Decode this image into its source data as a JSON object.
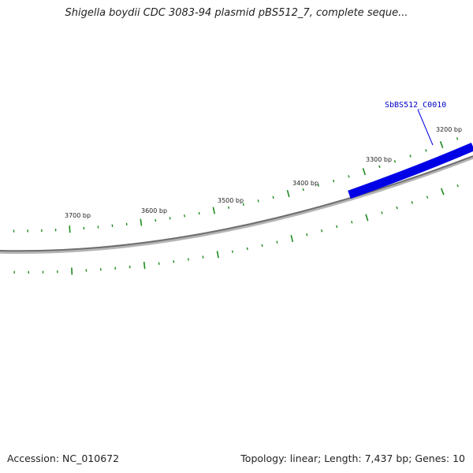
{
  "title": "Shigella boydii CDC 3083-94 plasmid pBS512_7, complete seque...",
  "footer": {
    "accession": "Accession: NC_010672",
    "summary": "Topology: linear; Length: 7,437 bp; Genes: 10"
  },
  "sequence": {
    "tick_labels": [
      "3200 bp",
      "3300 bp",
      "3400 bp",
      "3500 bp",
      "3600 bp",
      "3700 bp"
    ]
  },
  "genes": [
    {
      "label": "SbBS512_C0010",
      "color": "#0000e6"
    }
  ],
  "colors": {
    "backbone": "#7a7a7a",
    "ticks": "#1f8a1f",
    "gene": "#0000e6",
    "gene_label": "#0000c8"
  }
}
